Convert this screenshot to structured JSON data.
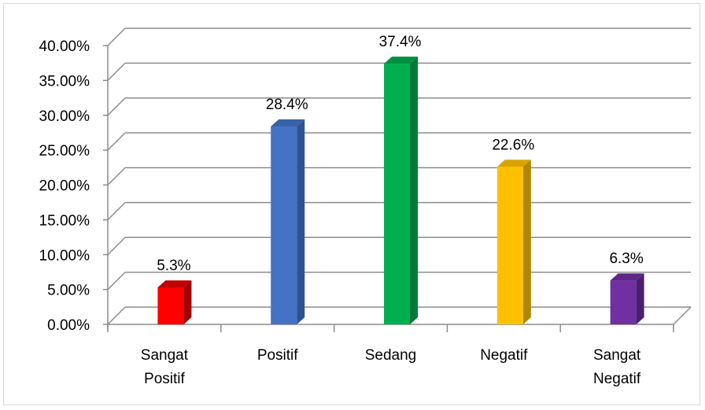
{
  "chart_data": {
    "type": "bar",
    "style": "3d-column",
    "categories": [
      [
        "Sangat",
        "Positif"
      ],
      [
        "Positif"
      ],
      [
        "Sedang"
      ],
      [
        "Negatif"
      ],
      [
        "Sangat",
        "Negatif"
      ]
    ],
    "values": [
      0.053,
      0.284,
      0.374,
      0.226,
      0.063
    ],
    "data_labels": [
      "5.3%",
      "28.4%",
      "37.4%",
      "22.6%",
      "6.3%"
    ],
    "colors": [
      "#ff0000",
      "#4472c4",
      "#00b050",
      "#ffc000",
      "#7030a0"
    ],
    "side_colors": [
      "#a00000",
      "#2f528f",
      "#00783a",
      "#b08500",
      "#4b1f6e"
    ],
    "top_colors": [
      "#c00000",
      "#3a62a8",
      "#009040",
      "#d9a300",
      "#5e2787"
    ],
    "ylim": [
      0,
      0.4
    ],
    "yticks": [
      0,
      0.05,
      0.1,
      0.15,
      0.2,
      0.25,
      0.3,
      0.35,
      0.4
    ],
    "ytick_labels": [
      "0.00%",
      "5.00%",
      "10.00%",
      "15.00%",
      "20.00%",
      "25.00%",
      "30.00%",
      "35.00%",
      "40.00%"
    ],
    "grid": true,
    "legend": "none"
  }
}
